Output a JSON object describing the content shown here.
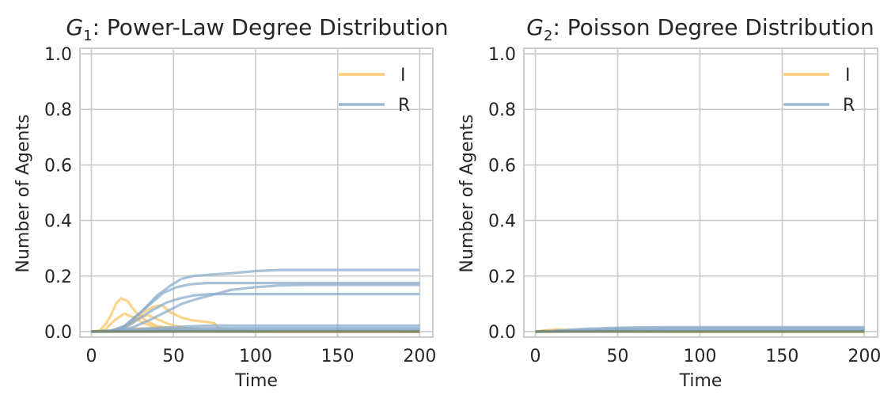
{
  "chart_data": [
    {
      "type": "line",
      "title_symbol": "G",
      "title_subscript": "1",
      "title_rest": ": Power-Law Degree Distribution",
      "xlabel": "Time",
      "ylabel": "Number of Agents",
      "xlim": [
        -7,
        208
      ],
      "ylim": [
        -0.02,
        1.02
      ],
      "xticks": [
        0,
        50,
        100,
        150,
        200
      ],
      "yticks": [
        0.0,
        0.2,
        0.4,
        0.6,
        0.8,
        1.0
      ],
      "ytick_labels": [
        "0.0",
        "0.2",
        "0.4",
        "0.6",
        "0.8",
        "1.0"
      ],
      "grid": true,
      "legend": {
        "placement": "top-right",
        "entries": [
          "I",
          "R"
        ]
      },
      "colors": {
        "I": "#f9c35f",
        "R": "#88aacb",
        "overlap": "#708060"
      },
      "series": [
        {
          "name": "I",
          "points": [
            [
              0,
              0
            ],
            [
              5,
              0.004
            ],
            [
              9,
              0.03
            ],
            [
              12,
              0.06
            ],
            [
              15,
              0.1
            ],
            [
              18,
              0.12
            ],
            [
              22,
              0.11
            ],
            [
              27,
              0.07
            ],
            [
              33,
              0.04
            ],
            [
              40,
              0.02
            ],
            [
              55,
              0.006
            ],
            [
              75,
              0.002
            ],
            [
              100,
              0
            ],
            [
              200,
              0
            ]
          ]
        },
        {
          "name": "I",
          "points": [
            [
              0,
              0
            ],
            [
              8,
              0.005
            ],
            [
              14,
              0.04
            ],
            [
              20,
              0.065
            ],
            [
              26,
              0.05
            ],
            [
              32,
              0.03
            ],
            [
              40,
              0.015
            ],
            [
              55,
              0.005
            ],
            [
              80,
              0.001
            ],
            [
              120,
              0
            ],
            [
              200,
              0
            ]
          ]
        },
        {
          "name": "I",
          "points": [
            [
              0,
              0
            ],
            [
              15,
              0.003
            ],
            [
              25,
              0.03
            ],
            [
              32,
              0.07
            ],
            [
              38,
              0.09
            ],
            [
              43,
              0.095
            ],
            [
              48,
              0.07
            ],
            [
              55,
              0.05
            ],
            [
              62,
              0.04
            ],
            [
              70,
              0.035
            ],
            [
              75,
              0.03
            ],
            [
              78,
              0.01
            ],
            [
              90,
              0.002
            ],
            [
              110,
              0
            ],
            [
              200,
              0
            ]
          ]
        },
        {
          "name": "I",
          "points": [
            [
              0,
              0
            ],
            [
              12,
              0.002
            ],
            [
              20,
              0.02
            ],
            [
              28,
              0.045
            ],
            [
              34,
              0.06
            ],
            [
              40,
              0.045
            ],
            [
              48,
              0.025
            ],
            [
              58,
              0.012
            ],
            [
              70,
              0.005
            ],
            [
              90,
              0.001
            ],
            [
              120,
              0
            ],
            [
              200,
              0
            ]
          ]
        },
        {
          "name": "I",
          "points": [
            [
              0,
              0
            ],
            [
              10,
              0.003
            ],
            [
              20,
              0.008
            ],
            [
              30,
              0.012
            ],
            [
              40,
              0.01
            ],
            [
              55,
              0.006
            ],
            [
              70,
              0.003
            ],
            [
              90,
              0.001
            ],
            [
              200,
              0
            ]
          ]
        },
        {
          "name": "I",
          "points": [
            [
              0,
              0
            ],
            [
              15,
              0.002
            ],
            [
              30,
              0.006
            ],
            [
              45,
              0.008
            ],
            [
              60,
              0.006
            ],
            [
              80,
              0.003
            ],
            [
              100,
              0.001
            ],
            [
              200,
              0
            ]
          ]
        },
        {
          "name": "R",
          "points": [
            [
              0,
              0
            ],
            [
              10,
              0.002
            ],
            [
              18,
              0.01
            ],
            [
              25,
              0.04
            ],
            [
              32,
              0.08
            ],
            [
              40,
              0.13
            ],
            [
              48,
              0.165
            ],
            [
              55,
              0.19
            ],
            [
              62,
              0.2
            ],
            [
              72,
              0.205
            ],
            [
              85,
              0.21
            ],
            [
              100,
              0.218
            ],
            [
              115,
              0.222
            ],
            [
              200,
              0.222
            ]
          ]
        },
        {
          "name": "R",
          "points": [
            [
              0,
              0
            ],
            [
              12,
              0.003
            ],
            [
              20,
              0.02
            ],
            [
              28,
              0.06
            ],
            [
              36,
              0.1
            ],
            [
              44,
              0.14
            ],
            [
              52,
              0.16
            ],
            [
              60,
              0.17
            ],
            [
              70,
              0.175
            ],
            [
              200,
              0.175
            ]
          ]
        },
        {
          "name": "R",
          "points": [
            [
              0,
              0
            ],
            [
              15,
              0.003
            ],
            [
              25,
              0.015
            ],
            [
              35,
              0.04
            ],
            [
              45,
              0.07
            ],
            [
              55,
              0.1
            ],
            [
              63,
              0.115
            ],
            [
              72,
              0.13
            ],
            [
              85,
              0.15
            ],
            [
              100,
              0.16
            ],
            [
              115,
              0.166
            ],
            [
              130,
              0.168
            ],
            [
              200,
              0.168
            ]
          ]
        },
        {
          "name": "R",
          "points": [
            [
              0,
              0
            ],
            [
              15,
              0.004
            ],
            [
              22,
              0.02
            ],
            [
              30,
              0.05
            ],
            [
              38,
              0.08
            ],
            [
              46,
              0.105
            ],
            [
              54,
              0.12
            ],
            [
              62,
              0.13
            ],
            [
              72,
              0.135
            ],
            [
              200,
              0.135
            ]
          ]
        },
        {
          "name": "R",
          "points": [
            [
              0,
              0
            ],
            [
              20,
              0.006
            ],
            [
              35,
              0.012
            ],
            [
              50,
              0.016
            ],
            [
              60,
              0.019
            ],
            [
              75,
              0.022
            ],
            [
              200,
              0.022
            ]
          ]
        },
        {
          "name": "R",
          "points": [
            [
              0,
              0
            ],
            [
              20,
              0.003
            ],
            [
              40,
              0.008
            ],
            [
              60,
              0.011
            ],
            [
              80,
              0.013
            ],
            [
              200,
              0.013
            ]
          ]
        },
        {
          "name": "R",
          "points": [
            [
              0,
              0
            ],
            [
              25,
              0.002
            ],
            [
              45,
              0.005
            ],
            [
              65,
              0.007
            ],
            [
              90,
              0.008
            ],
            [
              200,
              0.008
            ]
          ]
        },
        {
          "name": "R",
          "points": [
            [
              0,
              0
            ],
            [
              30,
              0.002
            ],
            [
              60,
              0.004
            ],
            [
              200,
              0.004
            ]
          ]
        }
      ]
    },
    {
      "type": "line",
      "title_symbol": "G",
      "title_subscript": "2",
      "title_rest": ": Poisson Degree Distribution",
      "xlabel": "Time",
      "ylabel": "Number of Agents",
      "xlim": [
        -7,
        208
      ],
      "ylim": [
        -0.02,
        1.02
      ],
      "xticks": [
        0,
        50,
        100,
        150,
        200
      ],
      "yticks": [
        0.0,
        0.2,
        0.4,
        0.6,
        0.8,
        1.0
      ],
      "ytick_labels": [
        "0.0",
        "0.2",
        "0.4",
        "0.6",
        "0.8",
        "1.0"
      ],
      "grid": true,
      "legend": {
        "placement": "top-right",
        "entries": [
          "I",
          "R"
        ]
      },
      "colors": {
        "I": "#f9c35f",
        "R": "#88aacb",
        "overlap": "#708060"
      },
      "series": [
        {
          "name": "I",
          "points": [
            [
              0,
              0
            ],
            [
              5,
              0.004
            ],
            [
              12,
              0.007
            ],
            [
              20,
              0.006
            ],
            [
              30,
              0.004
            ],
            [
              45,
              0.002
            ],
            [
              60,
              0.001
            ],
            [
              80,
              0
            ],
            [
              200,
              0
            ]
          ]
        },
        {
          "name": "I",
          "points": [
            [
              0,
              0
            ],
            [
              8,
              0.003
            ],
            [
              15,
              0.005
            ],
            [
              25,
              0.004
            ],
            [
              40,
              0.002
            ],
            [
              60,
              0
            ],
            [
              200,
              0
            ]
          ]
        },
        {
          "name": "I",
          "points": [
            [
              0,
              0
            ],
            [
              10,
              0.002
            ],
            [
              20,
              0.003
            ],
            [
              35,
              0.002
            ],
            [
              55,
              0.001
            ],
            [
              80,
              0
            ],
            [
              200,
              0
            ]
          ]
        },
        {
          "name": "R",
          "points": [
            [
              0,
              0
            ],
            [
              10,
              0.002
            ],
            [
              20,
              0.006
            ],
            [
              30,
              0.01
            ],
            [
              40,
              0.012
            ],
            [
              50,
              0.014
            ],
            [
              60,
              0.015
            ],
            [
              80,
              0.016
            ],
            [
              200,
              0.016
            ]
          ]
        },
        {
          "name": "R",
          "points": [
            [
              0,
              0
            ],
            [
              10,
              0.001
            ],
            [
              20,
              0.004
            ],
            [
              35,
              0.007
            ],
            [
              50,
              0.01
            ],
            [
              70,
              0.011
            ],
            [
              200,
              0.011
            ]
          ]
        },
        {
          "name": "R",
          "points": [
            [
              0,
              0
            ],
            [
              15,
              0.002
            ],
            [
              30,
              0.004
            ],
            [
              50,
              0.006
            ],
            [
              200,
              0.006
            ]
          ]
        },
        {
          "name": "R",
          "points": [
            [
              0,
              0
            ],
            [
              20,
              0.001
            ],
            [
              40,
              0.003
            ],
            [
              200,
              0.003
            ]
          ]
        }
      ]
    }
  ]
}
